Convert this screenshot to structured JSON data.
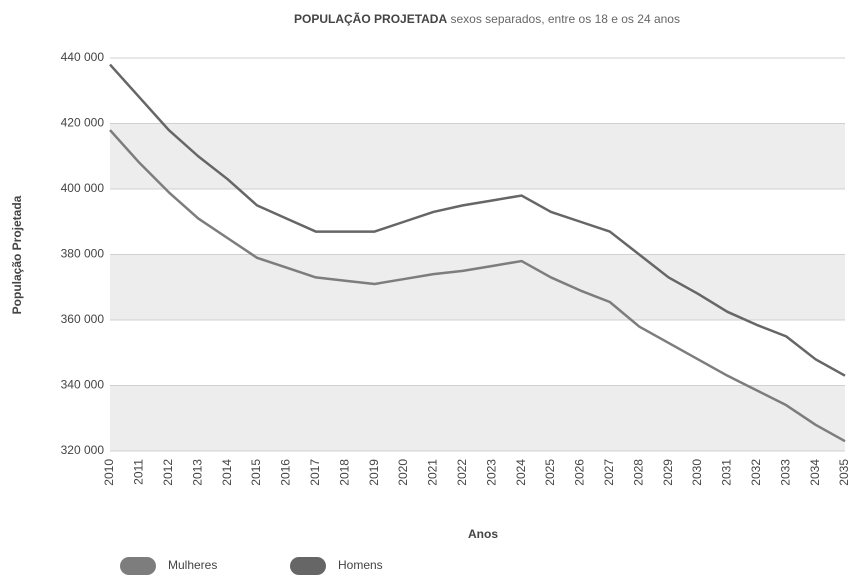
{
  "chart_data": {
    "type": "line",
    "title": "POPULAÇÃO PROJETADA",
    "subtitle": "sexos separados, entre os 18 e os 24 anos",
    "x_label": "Anos",
    "y_label": "População Projetada",
    "categories": [
      "2010",
      "2011",
      "2012",
      "2013",
      "2014",
      "2015",
      "2016",
      "2017",
      "2018",
      "2019",
      "2020",
      "2021",
      "2022",
      "2023",
      "2024",
      "2025",
      "2026",
      "2027",
      "2028",
      "2029",
      "2030",
      "2031",
      "2032",
      "2033",
      "2034",
      "2035"
    ],
    "series": [
      {
        "name": "Mulheres",
        "color": "#7d7d7d",
        "values": [
          418000,
          408000,
          399000,
          391000,
          385000,
          379000,
          376000,
          373000,
          372000,
          371000,
          372500,
          374000,
          375000,
          376500,
          378000,
          373000,
          369000,
          365500,
          358000,
          353000,
          348000,
          343000,
          338500,
          334000,
          328000,
          323000
        ]
      },
      {
        "name": "Homens",
        "color": "#666666",
        "values": [
          438000,
          428000,
          418000,
          410000,
          403000,
          395000,
          391000,
          387000,
          387000,
          387000,
          390000,
          393000,
          395000,
          396500,
          398000,
          393000,
          390000,
          387000,
          380000,
          373000,
          368000,
          362500,
          358500,
          355000,
          348000,
          343000
        ]
      }
    ],
    "ylim": [
      320000,
      440000
    ],
    "yticks": [
      {
        "value": 320000,
        "label": "320 000"
      },
      {
        "value": 340000,
        "label": "340 000"
      },
      {
        "value": 360000,
        "label": "360 000"
      },
      {
        "value": 380000,
        "label": "380 000"
      },
      {
        "value": 400000,
        "label": "400 000"
      },
      {
        "value": 420000,
        "label": "420 000"
      },
      {
        "value": 440000,
        "label": "440 000"
      }
    ],
    "grid": true,
    "legend": "bottom-left"
  }
}
